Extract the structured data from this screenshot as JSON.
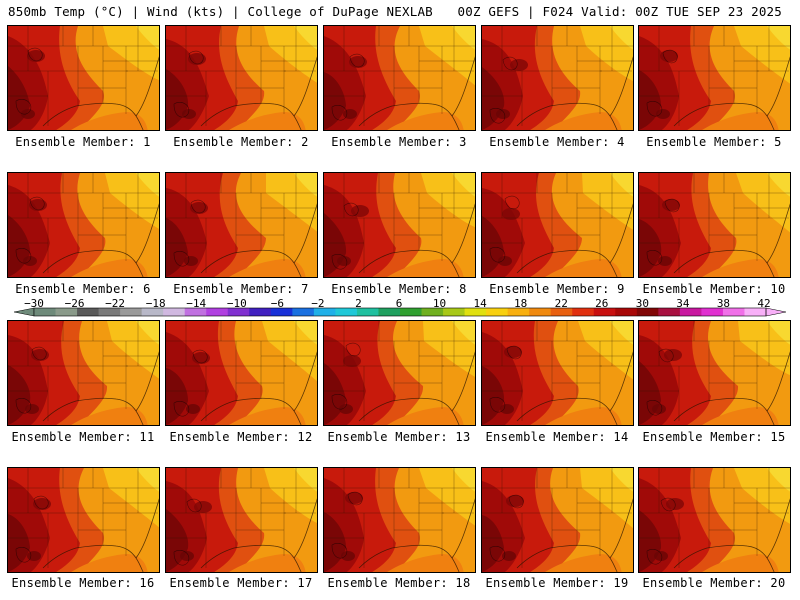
{
  "header": {
    "left_title": "850mb Temp (°C) | Wind (kts) | College of DuPage NEXLAB",
    "right_title": "00Z GEFS | F024 Valid: 00Z TUE SEP 23 2025"
  },
  "members": [
    {
      "label": "Ensemble Member: 1"
    },
    {
      "label": "Ensemble Member: 2"
    },
    {
      "label": "Ensemble Member: 3"
    },
    {
      "label": "Ensemble Member: 4"
    },
    {
      "label": "Ensemble Member: 5"
    },
    {
      "label": "Ensemble Member: 6"
    },
    {
      "label": "Ensemble Member: 7"
    },
    {
      "label": "Ensemble Member: 8"
    },
    {
      "label": "Ensemble Member: 9"
    },
    {
      "label": "Ensemble Member: 10"
    },
    {
      "label": "Ensemble Member: 11"
    },
    {
      "label": "Ensemble Member: 12"
    },
    {
      "label": "Ensemble Member: 13"
    },
    {
      "label": "Ensemble Member: 14"
    },
    {
      "label": "Ensemble Member: 15"
    },
    {
      "label": "Ensemble Member: 16"
    },
    {
      "label": "Ensemble Member: 17"
    },
    {
      "label": "Ensemble Member: 18"
    },
    {
      "label": "Ensemble Member: 19"
    },
    {
      "label": "Ensemble Member: 20"
    }
  ],
  "colorbar": {
    "labels": [
      "−30",
      "−26",
      "−22",
      "−18",
      "−14",
      "−10",
      "−6",
      "−2",
      "2",
      "6",
      "10",
      "14",
      "18",
      "22",
      "26",
      "30",
      "34",
      "38",
      "42"
    ],
    "colors": [
      "#6e8a7a",
      "#8a9a8a",
      "#5a5a5a",
      "#7a7a7a",
      "#9a9a9a",
      "#b8b8c8",
      "#d0b8e0",
      "#c070e0",
      "#b040e0",
      "#8030d0",
      "#4020c0",
      "#1830d8",
      "#1a70e0",
      "#20b0e8",
      "#20c8d8",
      "#20c0a0",
      "#20a060",
      "#30a030",
      "#70b020",
      "#a8c818",
      "#e0e010",
      "#f8d010",
      "#f8b010",
      "#f08a10",
      "#e86010",
      "#e03010",
      "#c81010",
      "#a80808",
      "#800606",
      "#a81040",
      "#c818a0",
      "#e030d0",
      "#f070e8",
      "#f8b0f8"
    ]
  }
}
